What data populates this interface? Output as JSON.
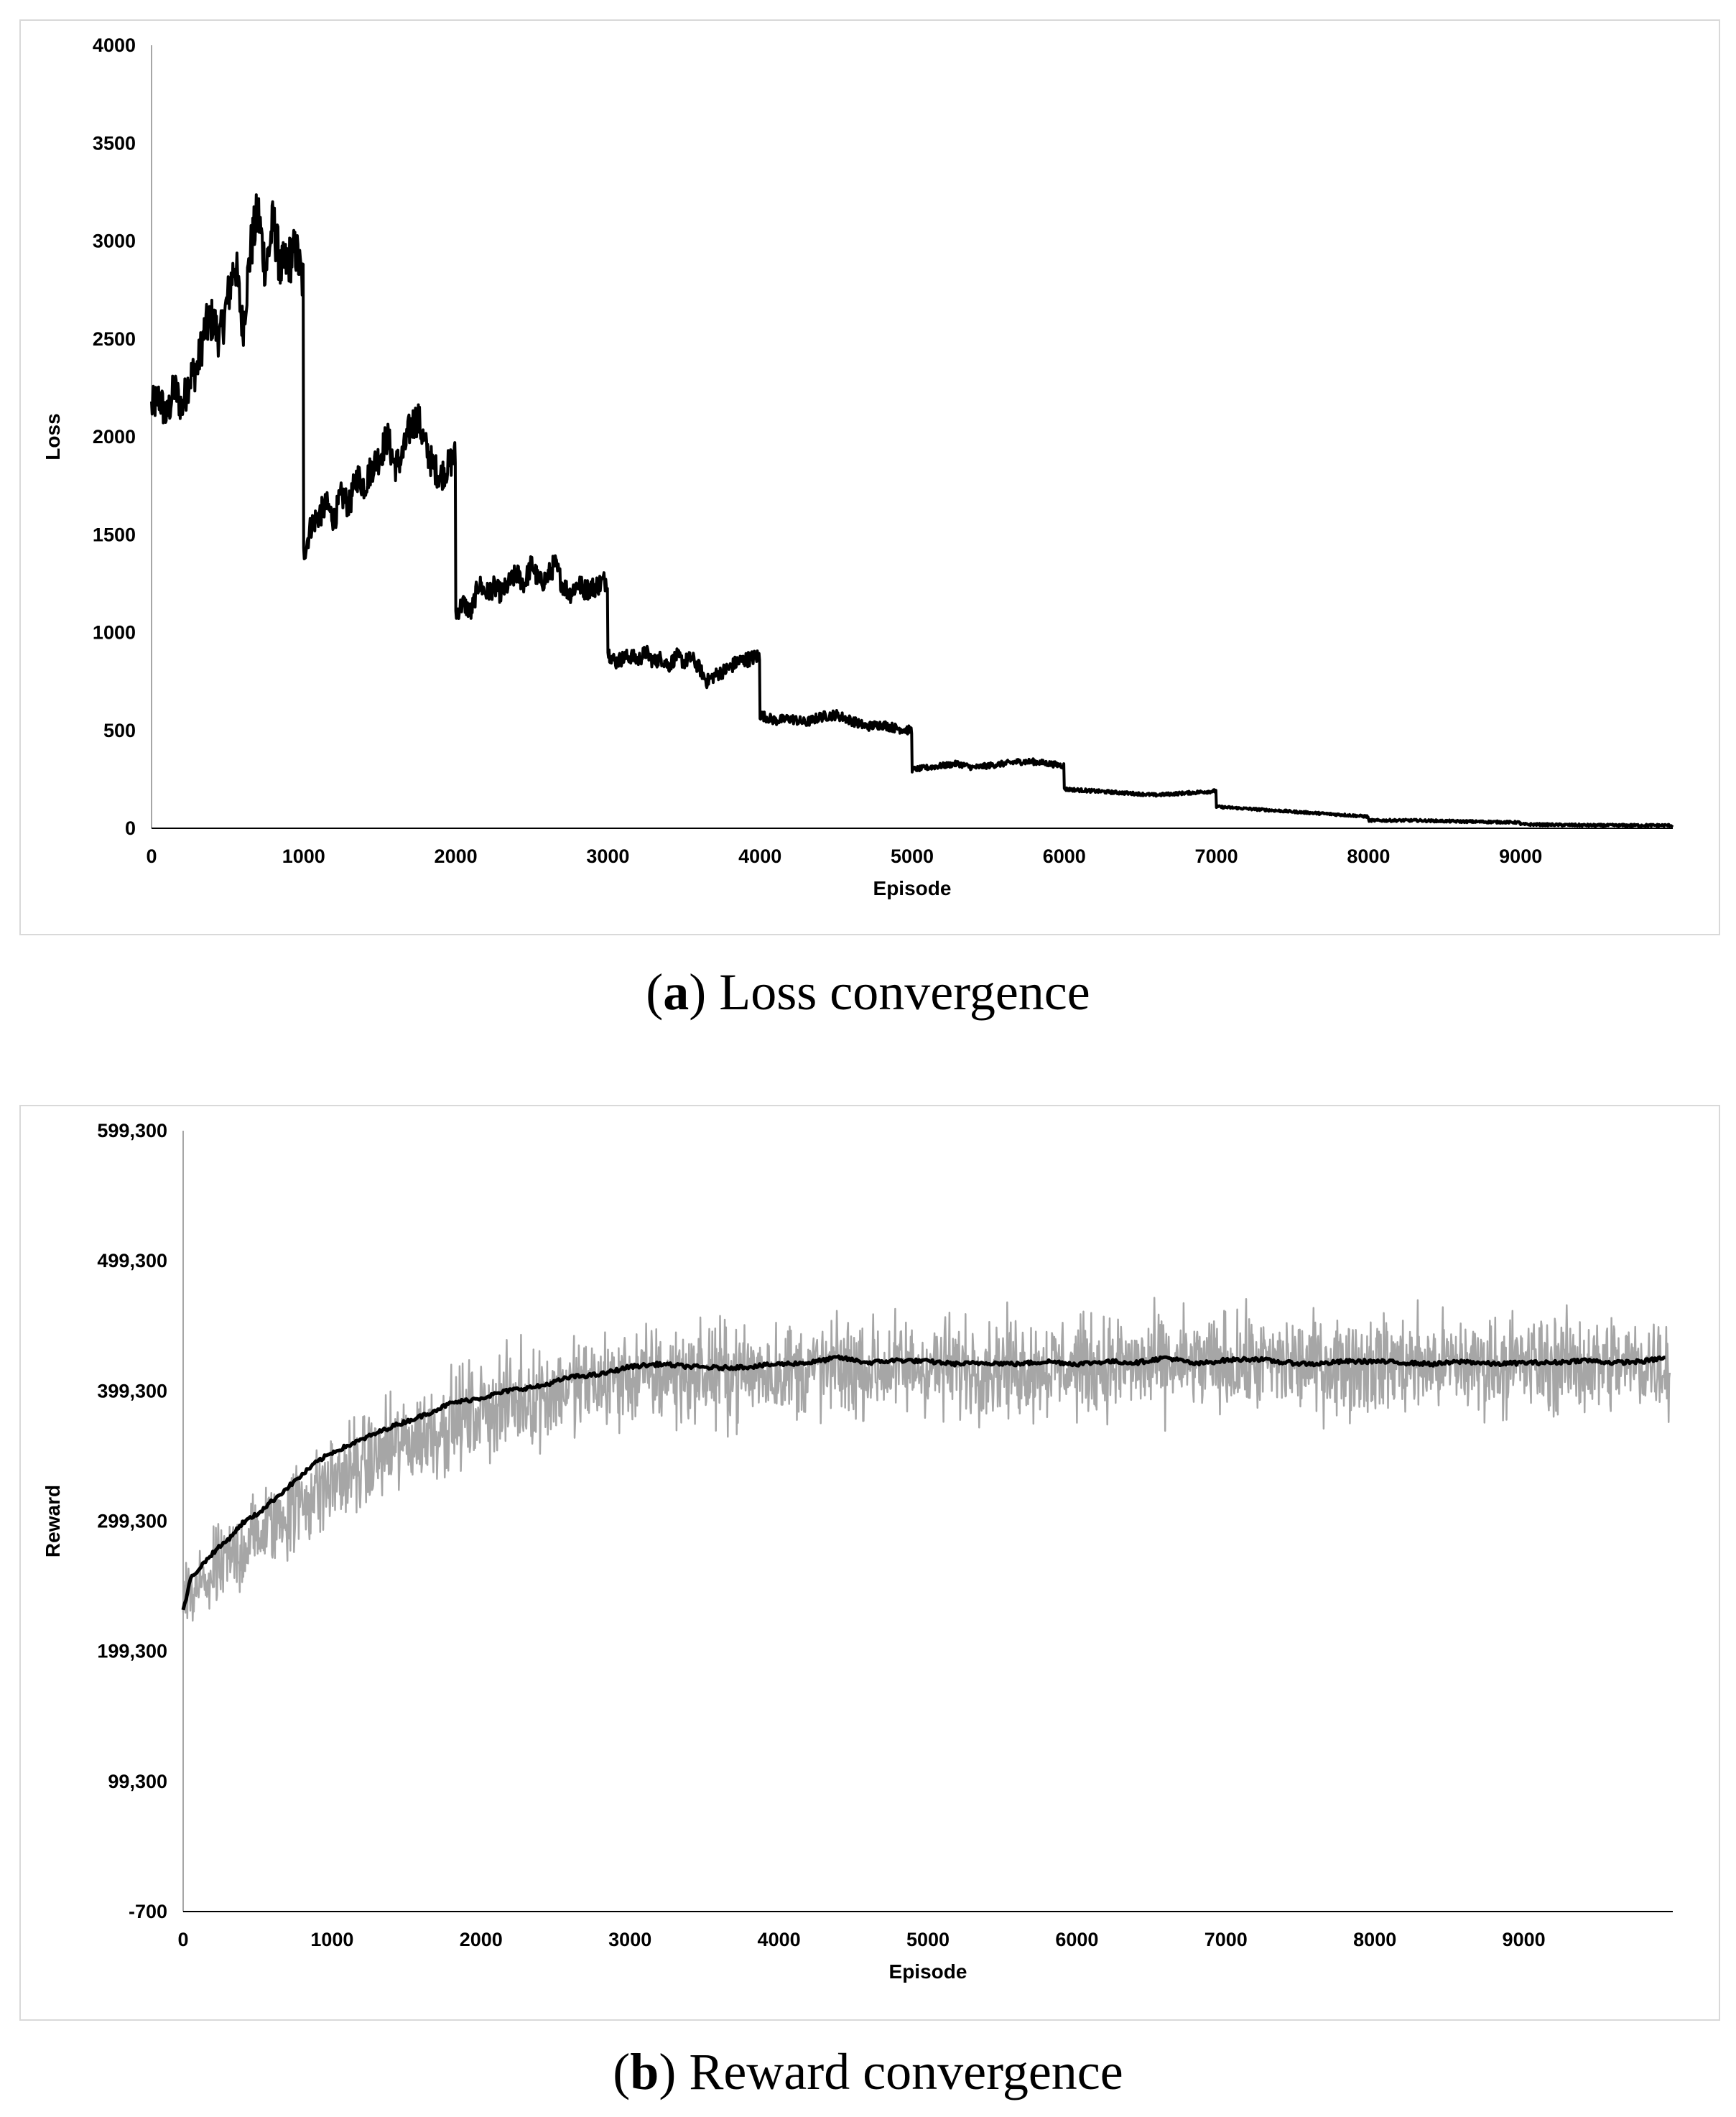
{
  "chart_data": [
    {
      "type": "line",
      "caption_letter": "a",
      "caption_text": "Loss convergence",
      "xlabel": "Episode",
      "ylabel": "Loss",
      "xlim": [
        0,
        10000
      ],
      "ylim": [
        0,
        4000
      ],
      "x_ticks": [
        "0",
        "1000",
        "2000",
        "3000",
        "4000",
        "5000",
        "6000",
        "7000",
        "8000",
        "9000"
      ],
      "y_ticks": [
        "0",
        "500",
        "1000",
        "1500",
        "2000",
        "2500",
        "3000",
        "3500",
        "4000"
      ],
      "grid": false,
      "line_color": "#000000",
      "series": [
        {
          "x": [
            0,
            50,
            100,
            150,
            200,
            250,
            300,
            350,
            400,
            450,
            500,
            550,
            600,
            650,
            700,
            750,
            800,
            850,
            900,
            950,
            990,
            1000,
            1050,
            1100,
            1150,
            1200,
            1250,
            1300,
            1350,
            1400,
            1450,
            1500,
            1550,
            1600,
            1650,
            1700,
            1750,
            1800,
            1850,
            1900,
            1950,
            1990,
            2000,
            2050,
            2100,
            2150,
            2200,
            2250,
            2300,
            2350,
            2400,
            2450,
            2500,
            2550,
            2600,
            2650,
            2700,
            2750,
            2800,
            2850,
            2900,
            2950,
            2990,
            3000,
            3050,
            3100,
            3150,
            3200,
            3250,
            3300,
            3350,
            3400,
            3450,
            3500,
            3550,
            3600,
            3650,
            3700,
            3750,
            3800,
            3850,
            3900,
            3950,
            3990,
            4000,
            4100,
            4200,
            4300,
            4400,
            4500,
            4600,
            4700,
            4800,
            4900,
            4990,
            5000,
            5100,
            5200,
            5300,
            5400,
            5500,
            5600,
            5700,
            5800,
            5900,
            5990,
            6000,
            6200,
            6400,
            6600,
            6800,
            6990,
            7000,
            7200,
            7400,
            7600,
            7800,
            7990,
            8000,
            8300,
            8600,
            8990,
            9000,
            9500,
            9990
          ],
          "y": [
            2150,
            2200,
            2100,
            2250,
            2150,
            2300,
            2350,
            2550,
            2600,
            2500,
            2700,
            2900,
            2550,
            2950,
            3150,
            2850,
            3100,
            2850,
            2900,
            2950,
            2800,
            1400,
            1550,
            1600,
            1650,
            1580,
            1700,
            1650,
            1800,
            1750,
            1850,
            1900,
            2000,
            1850,
            1900,
            2050,
            2100,
            1950,
            1850,
            1800,
            1850,
            1900,
            1100,
            1150,
            1100,
            1250,
            1200,
            1230,
            1200,
            1250,
            1300,
            1250,
            1350,
            1250,
            1280,
            1350,
            1250,
            1200,
            1250,
            1220,
            1230,
            1250,
            1270,
            900,
            850,
            870,
            880,
            860,
            900,
            850,
            870,
            830,
            880,
            850,
            870,
            820,
            750,
            780,
            800,
            820,
            850,
            860,
            870,
            880,
            580,
            550,
            560,
            540,
            570,
            580,
            550,
            520,
            530,
            510,
            500,
            300,
            310,
            320,
            330,
            310,
            320,
            330,
            340,
            340,
            330,
            320,
            200,
            190,
            180,
            170,
            180,
            190,
            110,
            100,
            90,
            80,
            70,
            60,
            40,
            40,
            35,
            30,
            20,
            15,
            15
          ]
        }
      ]
    },
    {
      "type": "line",
      "caption_letter": "b",
      "caption_text": "Reward convergence",
      "xlabel": "Episode",
      "ylabel": "Reward",
      "xlim": [
        0,
        10000
      ],
      "ylim": [
        -700,
        599300
      ],
      "x_ticks": [
        "0",
        "1000",
        "2000",
        "3000",
        "4000",
        "5000",
        "6000",
        "7000",
        "8000",
        "9000"
      ],
      "y_ticks": [
        "-700",
        "99,300",
        "199,300",
        "299,300",
        "399,300",
        "499,300",
        "599,300"
      ],
      "grid": false,
      "raw_color": "#a6a6a6",
      "avg_color": "#000000",
      "raw_band": {
        "x": [
          0,
          500,
          1000,
          1500,
          2000,
          2500,
          3000,
          4000,
          5000,
          6000,
          7000,
          8000,
          9000,
          10000
        ],
        "y_mid": [
          235000,
          290000,
          330000,
          360000,
          385000,
          400000,
          410000,
          415000,
          418000,
          418000,
          420000,
          420000,
          420000,
          420000
        ],
        "y_halfwidth": [
          45000,
          50000,
          55000,
          55000,
          55000,
          55000,
          55000,
          55000,
          55000,
          55000,
          55000,
          55000,
          55000,
          55000
        ]
      },
      "series": [
        {
          "x": [
            0,
            50,
            100,
            200,
            300,
            400,
            500,
            600,
            700,
            800,
            900,
            1000,
            1200,
            1400,
            1600,
            1800,
            2000,
            2200,
            2400,
            2600,
            2800,
            3000,
            3200,
            3400,
            3600,
            3800,
            4000,
            4200,
            4400,
            4600,
            4800,
            5000,
            5200,
            5400,
            5600,
            5800,
            6000,
            6200,
            6400,
            6600,
            6800,
            7000,
            7200,
            7400,
            7600,
            7800,
            8000,
            8200,
            8400,
            8600,
            8800,
            9000,
            9200,
            9400,
            9600,
            9800,
            9950
          ],
          "y": [
            230000,
            255000,
            262000,
            275000,
            285000,
            298000,
            305000,
            315000,
            325000,
            335000,
            345000,
            352000,
            362000,
            372000,
            380000,
            390000,
            394000,
            400000,
            403000,
            410000,
            412000,
            418000,
            420000,
            418000,
            417000,
            418000,
            420000,
            421000,
            425000,
            421000,
            423000,
            422000,
            420000,
            421000,
            420000,
            422000,
            420000,
            422000,
            421000,
            425000,
            420000,
            423000,
            424000,
            421000,
            420000,
            422000,
            422000,
            421000,
            420000,
            422000,
            420000,
            421000,
            421000,
            423000,
            421000,
            422000,
            425000
          ]
        }
      ]
    }
  ]
}
